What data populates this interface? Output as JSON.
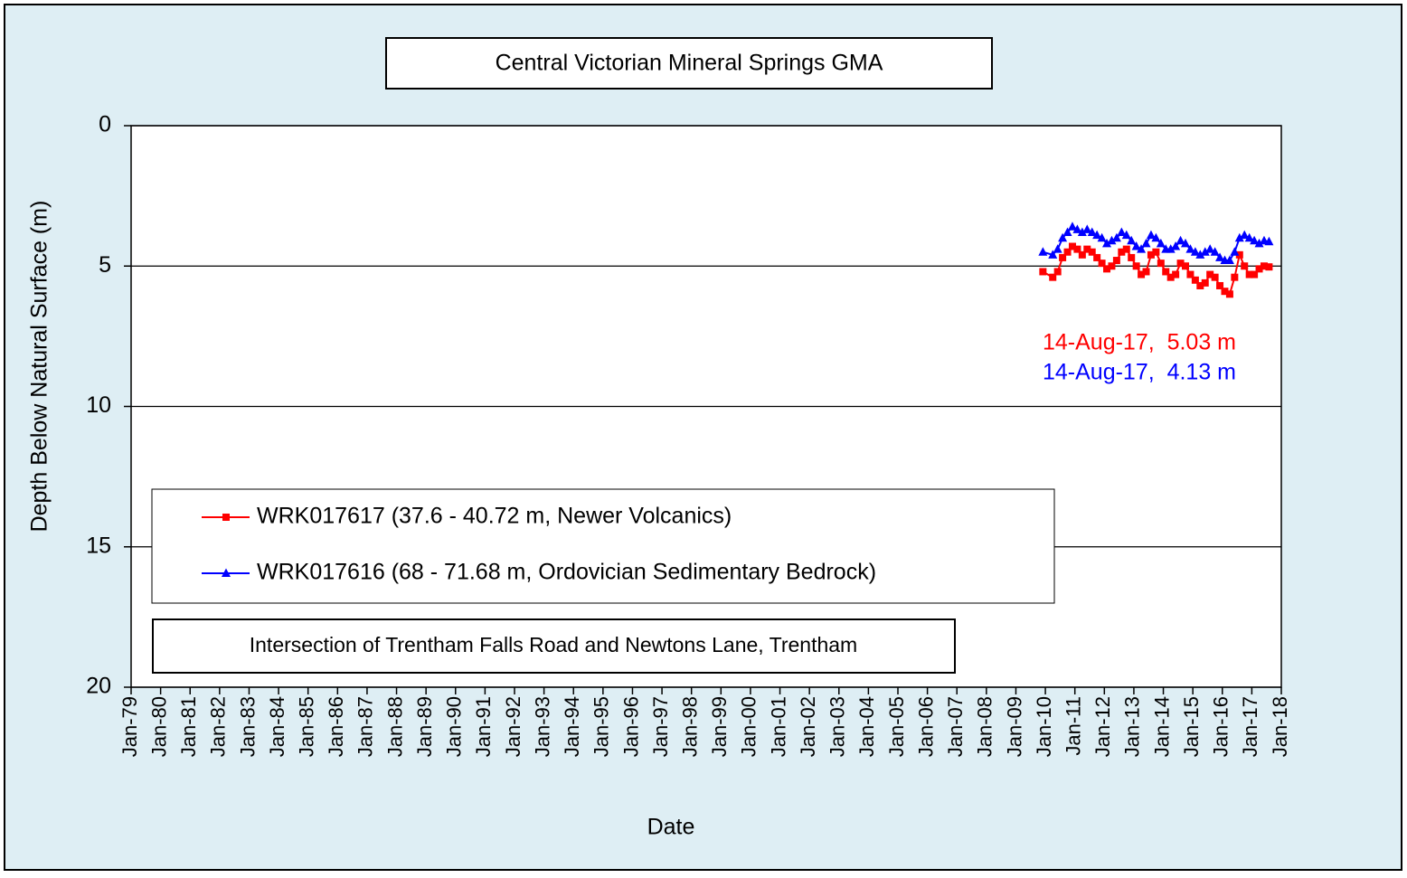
{
  "chart_data": {
    "type": "line",
    "title": "Central Victorian Mineral Springs GMA",
    "subtitle": "Intersection of Trentham Falls Road and Newtons Lane, Trentham",
    "x_label": "Date",
    "y_label": "Depth Below Natural Surface (m)",
    "y_inverted": true,
    "grid": true,
    "ylim": [
      0,
      20
    ],
    "yticks": [
      0,
      5,
      10,
      15,
      20
    ],
    "xlim": [
      "1979-01",
      "2018-01"
    ],
    "xticks": [
      {
        "value": "1979-01",
        "label": "Jan-79"
      },
      {
        "value": "1980-01",
        "label": "Jan-80"
      },
      {
        "value": "1981-01",
        "label": "Jan-81"
      },
      {
        "value": "1982-01",
        "label": "Jan-82"
      },
      {
        "value": "1983-01",
        "label": "Jan-83"
      },
      {
        "value": "1984-01",
        "label": "Jan-84"
      },
      {
        "value": "1985-01",
        "label": "Jan-85"
      },
      {
        "value": "1986-01",
        "label": "Jan-86"
      },
      {
        "value": "1987-01",
        "label": "Jan-87"
      },
      {
        "value": "1988-01",
        "label": "Jan-88"
      },
      {
        "value": "1989-01",
        "label": "Jan-89"
      },
      {
        "value": "1990-01",
        "label": "Jan-90"
      },
      {
        "value": "1991-01",
        "label": "Jan-91"
      },
      {
        "value": "1992-01",
        "label": "Jan-92"
      },
      {
        "value": "1993-01",
        "label": "Jan-93"
      },
      {
        "value": "1994-01",
        "label": "Jan-94"
      },
      {
        "value": "1995-01",
        "label": "Jan-95"
      },
      {
        "value": "1996-01",
        "label": "Jan-96"
      },
      {
        "value": "1997-01",
        "label": "Jan-97"
      },
      {
        "value": "1998-01",
        "label": "Jan-98"
      },
      {
        "value": "1999-01",
        "label": "Jan-99"
      },
      {
        "value": "2000-01",
        "label": "Jan-00"
      },
      {
        "value": "2001-01",
        "label": "Jan-01"
      },
      {
        "value": "2002-01",
        "label": "Jan-02"
      },
      {
        "value": "2003-01",
        "label": "Jan-03"
      },
      {
        "value": "2004-01",
        "label": "Jan-04"
      },
      {
        "value": "2005-01",
        "label": "Jan-05"
      },
      {
        "value": "2006-01",
        "label": "Jan-06"
      },
      {
        "value": "2007-01",
        "label": "Jan-07"
      },
      {
        "value": "2008-01",
        "label": "Jan-08"
      },
      {
        "value": "2009-01",
        "label": "Jan-09"
      },
      {
        "value": "2010-01",
        "label": "Jan-10"
      },
      {
        "value": "2011-01",
        "label": "Jan-11"
      },
      {
        "value": "2012-01",
        "label": "Jan-12"
      },
      {
        "value": "2013-01",
        "label": "Jan-13"
      },
      {
        "value": "2014-01",
        "label": "Jan-14"
      },
      {
        "value": "2015-01",
        "label": "Jan-15"
      },
      {
        "value": "2016-01",
        "label": "Jan-16"
      },
      {
        "value": "2017-01",
        "label": "Jan-17"
      },
      {
        "value": "2018-01",
        "label": "Jan-18"
      }
    ],
    "x": [
      "2009-12",
      "2010-04",
      "2010-06",
      "2010-08",
      "2010-10",
      "2010-12",
      "2011-02",
      "2011-04",
      "2011-06",
      "2011-08",
      "2011-10",
      "2011-12",
      "2012-02",
      "2012-04",
      "2012-06",
      "2012-08",
      "2012-10",
      "2012-12",
      "2013-02",
      "2013-04",
      "2013-06",
      "2013-08",
      "2013-10",
      "2013-12",
      "2014-02",
      "2014-04",
      "2014-06",
      "2014-08",
      "2014-10",
      "2014-12",
      "2015-02",
      "2015-04",
      "2015-06",
      "2015-08",
      "2015-10",
      "2015-12",
      "2016-02",
      "2016-04",
      "2016-06",
      "2016-08",
      "2016-10",
      "2016-12",
      "2017-02",
      "2017-04",
      "2017-06",
      "2017-08"
    ],
    "series": [
      {
        "name": "WRK017617 (37.6 - 40.72 m, Newer Volcanics)",
        "color": "#ff0000",
        "marker": "square",
        "values": [
          5.2,
          5.4,
          5.2,
          4.7,
          4.5,
          4.3,
          4.4,
          4.6,
          4.4,
          4.5,
          4.7,
          4.9,
          5.1,
          5.0,
          4.8,
          4.5,
          4.4,
          4.7,
          5.0,
          5.3,
          5.2,
          4.6,
          4.5,
          4.9,
          5.2,
          5.4,
          5.3,
          4.9,
          5.0,
          5.3,
          5.5,
          5.7,
          5.6,
          5.3,
          5.4,
          5.7,
          5.9,
          6.0,
          5.4,
          4.6,
          5.0,
          5.3,
          5.3,
          5.1,
          5.0,
          5.03
        ]
      },
      {
        "name": "WRK017616 (68 - 71.68 m, Ordovician Sedimentary Bedrock)",
        "color": "#0000ff",
        "marker": "triangle",
        "values": [
          4.5,
          4.6,
          4.4,
          4.0,
          3.8,
          3.6,
          3.7,
          3.8,
          3.7,
          3.8,
          3.9,
          4.0,
          4.2,
          4.1,
          4.0,
          3.8,
          3.9,
          4.1,
          4.3,
          4.4,
          4.2,
          3.9,
          4.0,
          4.2,
          4.4,
          4.4,
          4.3,
          4.1,
          4.2,
          4.4,
          4.5,
          4.6,
          4.5,
          4.4,
          4.5,
          4.7,
          4.8,
          4.8,
          4.5,
          4.0,
          3.9,
          4.0,
          4.1,
          4.2,
          4.1,
          4.13
        ]
      }
    ],
    "annotations": [
      {
        "text": "14-Aug-17,  5.03 m",
        "color": "#ff0000"
      },
      {
        "text": "14-Aug-17,  4.13 m",
        "color": "#0000ff"
      }
    ]
  }
}
